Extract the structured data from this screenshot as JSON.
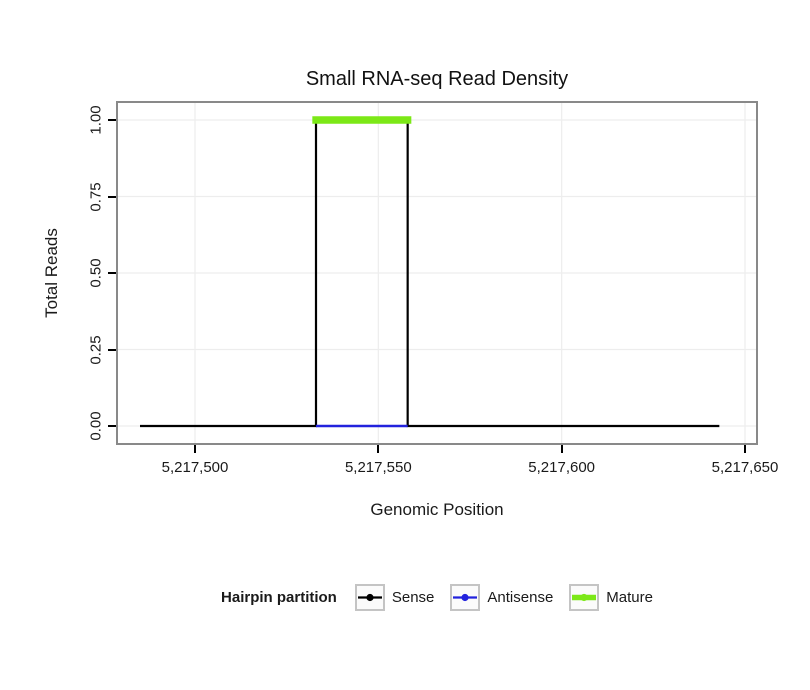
{
  "title": "Small RNA-seq Read Density",
  "axes": {
    "x_label": "Genomic Position",
    "y_label": "Total Reads"
  },
  "legend": {
    "title": "Hairpin partition",
    "items": [
      {
        "label": "Sense",
        "color": "#000000",
        "thick": false
      },
      {
        "label": "Antisense",
        "color": "#2222DD",
        "thick": false
      },
      {
        "label": "Mature",
        "color": "#7CE817",
        "thick": true
      }
    ]
  },
  "chart_data": {
    "type": "line",
    "title": "Small RNA-seq Read Density",
    "xlabel": "Genomic Position",
    "ylabel": "Total Reads",
    "xlim": [
      5217479,
      5217653
    ],
    "ylim": [
      0,
      1
    ],
    "grid": true,
    "legend_position": "bottom",
    "legend_title": "Hairpin partition",
    "xticks": [
      {
        "v": 5217500,
        "label": "5,217,500"
      },
      {
        "v": 5217550,
        "label": "5,217,550"
      },
      {
        "v": 5217600,
        "label": "5,217,600"
      },
      {
        "v": 5217650,
        "label": "5,217,650"
      }
    ],
    "yticks": [
      {
        "v": 0,
        "label": "0.00"
      },
      {
        "v": 0.25,
        "label": "0.25"
      },
      {
        "v": 0.5,
        "label": "0.50"
      },
      {
        "v": 0.75,
        "label": "0.75"
      },
      {
        "v": 1,
        "label": "1.00"
      }
    ],
    "series": [
      {
        "name": "Sense",
        "color": "#000000",
        "width": 2.2,
        "points": [
          [
            5217485,
            0
          ],
          [
            5217533,
            0
          ],
          [
            5217533,
            1
          ],
          [
            5217558,
            1
          ],
          [
            5217558,
            0
          ],
          [
            5217643,
            0
          ]
        ]
      },
      {
        "name": "Antisense",
        "color": "#2222DD",
        "width": 2.6,
        "points": [
          [
            5217533,
            0
          ],
          [
            5217558,
            0
          ]
        ]
      },
      {
        "name": "Mature",
        "color": "#7CE817",
        "width": 7.5,
        "points": [
          [
            5217532,
            1
          ],
          [
            5217559,
            1
          ]
        ]
      }
    ]
  }
}
